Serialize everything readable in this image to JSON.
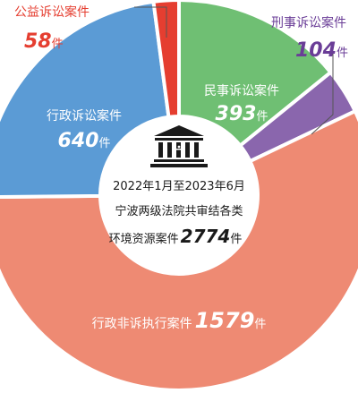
{
  "chart_data": {
    "type": "pie",
    "unit": "件",
    "slices": [
      {
        "name": "民事诉讼案件",
        "value": 393,
        "color": "#6fbf73",
        "label_color": "#ffffff"
      },
      {
        "name": "刑事诉讼案件",
        "value": 104,
        "color": "#8a66ad",
        "label_color": "#6a3d97"
      },
      {
        "name": "行政非诉执行案件",
        "value": 1579,
        "color": "#ee8a73",
        "label_color": "#ffffff"
      },
      {
        "name": "行政诉讼案件",
        "value": 640,
        "color": "#5b9bd5",
        "label_color": "#ffffff"
      },
      {
        "name": "公益诉讼案件",
        "value": 58,
        "color": "#e53e30",
        "label_color": "#e53e30"
      }
    ],
    "center": {
      "line1": "2022年1月至2023年6月",
      "line2": "宁波两级法院共审结各类",
      "line3_prefix": "环境资源案件",
      "total": "2774",
      "total_unit": "件"
    }
  }
}
